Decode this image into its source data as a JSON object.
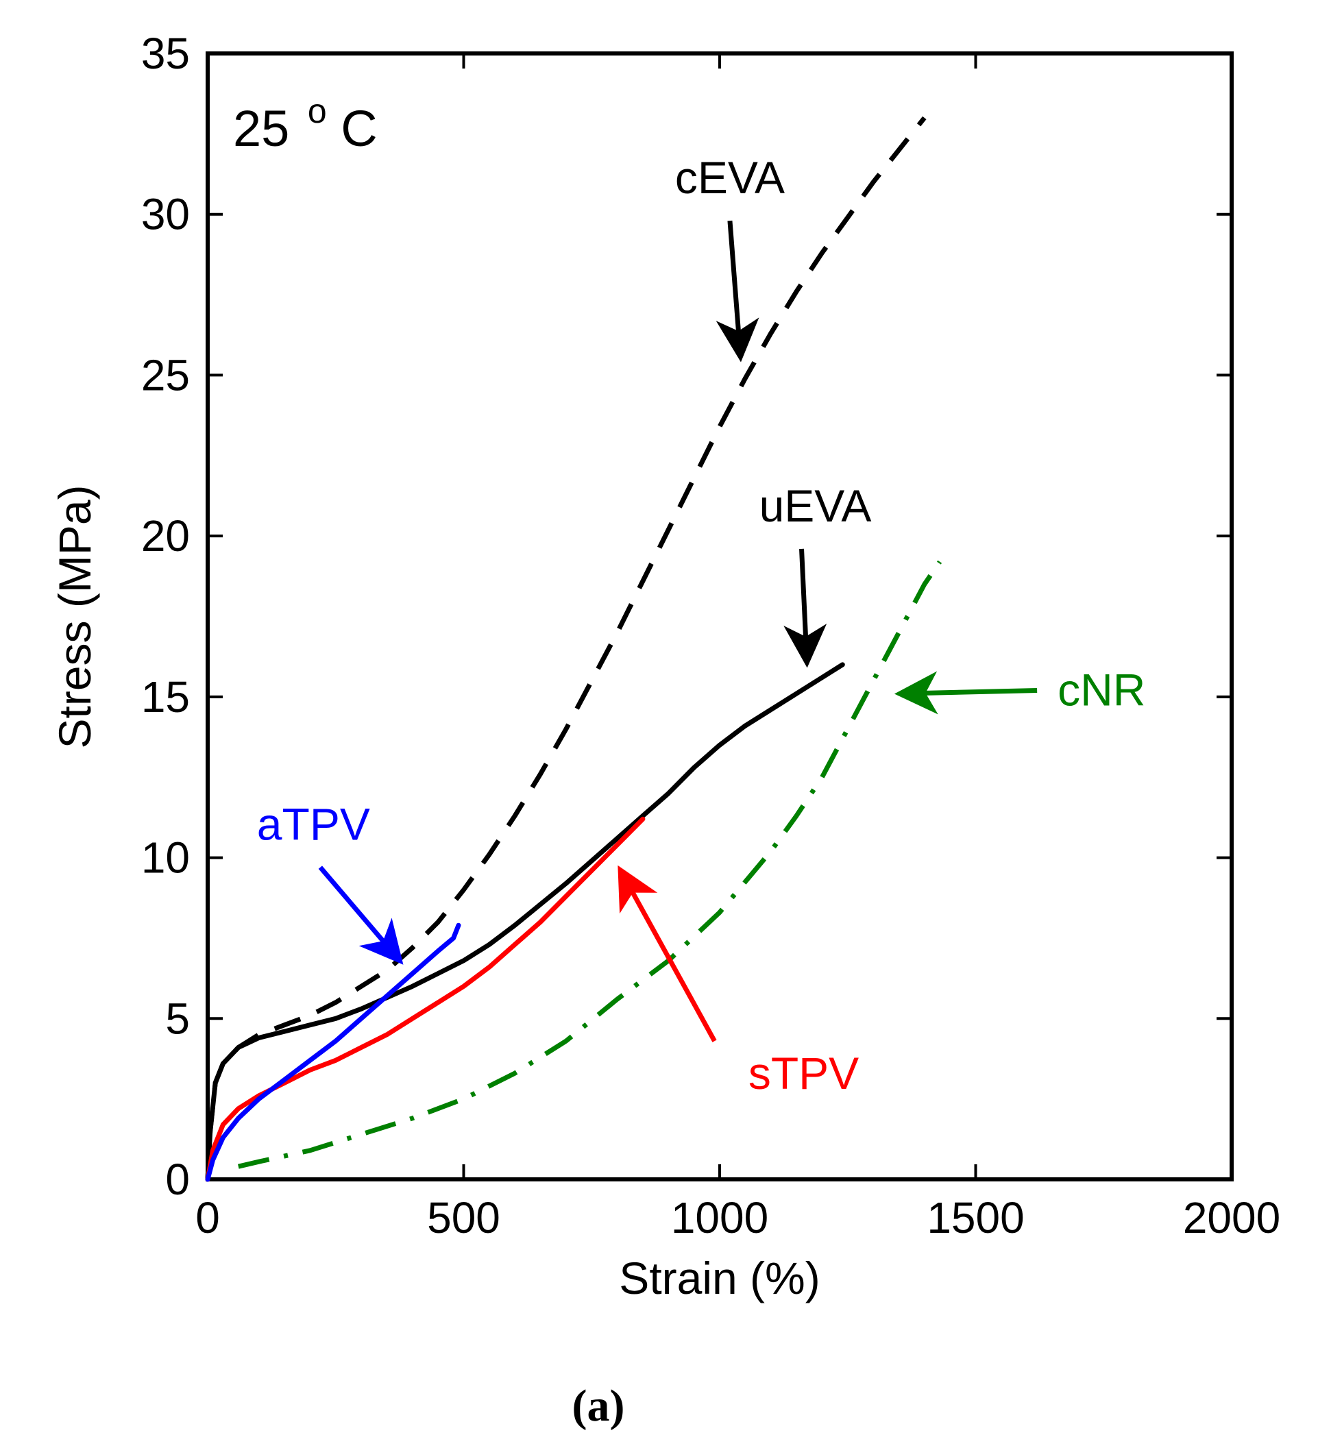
{
  "chart_data": {
    "type": "line",
    "title": "",
    "xlabel": "Strain (%)",
    "ylabel": "Stress (MPa)",
    "xlim": [
      0,
      2000
    ],
    "ylim": [
      0,
      35
    ],
    "xticks": [
      0,
      500,
      1000,
      1500,
      2000
    ],
    "yticks": [
      0,
      5,
      10,
      15,
      20,
      25,
      30,
      35
    ],
    "grid": false,
    "temperature_label": "25 °C",
    "temperature_value": "25",
    "temperature_unit": "C",
    "temperature_degree": "o",
    "caption": "(a)",
    "series": [
      {
        "name": "cEVA",
        "color": "#000000",
        "style": "dashed",
        "x": [
          0,
          5,
          15,
          30,
          60,
          100,
          150,
          200,
          250,
          300,
          350,
          400,
          450,
          500,
          550,
          600,
          650,
          700,
          750,
          800,
          850,
          900,
          950,
          1000,
          1050,
          1100,
          1150,
          1200,
          1250,
          1300,
          1350,
          1400
        ],
        "y": [
          0,
          1.5,
          3.0,
          3.6,
          4.1,
          4.5,
          4.8,
          5.1,
          5.5,
          6.0,
          6.5,
          7.2,
          8.0,
          9.0,
          10.1,
          11.3,
          12.6,
          14.0,
          15.5,
          17.0,
          18.6,
          20.2,
          21.8,
          23.4,
          24.9,
          26.3,
          27.6,
          28.8,
          29.9,
          31.0,
          32.0,
          33.0
        ]
      },
      {
        "name": "uEVA",
        "color": "#000000",
        "style": "solid",
        "x": [
          0,
          5,
          15,
          30,
          60,
          100,
          150,
          200,
          250,
          300,
          400,
          500,
          550,
          600,
          700,
          800,
          850,
          900,
          950,
          1000,
          1050,
          1100,
          1150,
          1200,
          1240
        ],
        "y": [
          0,
          1.5,
          3.0,
          3.6,
          4.1,
          4.4,
          4.6,
          4.8,
          5.0,
          5.3,
          6.0,
          6.8,
          7.3,
          7.9,
          9.2,
          10.6,
          11.3,
          12.0,
          12.8,
          13.5,
          14.1,
          14.6,
          15.1,
          15.6,
          16.0
        ]
      },
      {
        "name": "sTPV",
        "color": "#ff0000",
        "style": "solid",
        "x": [
          0,
          10,
          30,
          60,
          100,
          150,
          200,
          250,
          300,
          350,
          400,
          450,
          500,
          550,
          600,
          650,
          700,
          750,
          800,
          850
        ],
        "y": [
          0,
          0.9,
          1.7,
          2.2,
          2.6,
          3.0,
          3.4,
          3.7,
          4.1,
          4.5,
          5.0,
          5.5,
          6.0,
          6.6,
          7.3,
          8.0,
          8.8,
          9.6,
          10.4,
          11.2
        ]
      },
      {
        "name": "aTPV",
        "color": "#0000ff",
        "style": "solid",
        "x": [
          0,
          10,
          30,
          60,
          100,
          150,
          200,
          250,
          300,
          350,
          400,
          450,
          480,
          490
        ],
        "y": [
          0,
          0.6,
          1.3,
          1.9,
          2.5,
          3.1,
          3.7,
          4.3,
          5.0,
          5.7,
          6.4,
          7.1,
          7.5,
          7.9
        ]
      },
      {
        "name": "cNR",
        "color": "#008000",
        "style": "dashdot",
        "x": [
          60,
          100,
          200,
          300,
          400,
          500,
          600,
          700,
          800,
          900,
          1000,
          1100,
          1150,
          1200,
          1250,
          1300,
          1350,
          1400,
          1430
        ],
        "y": [
          0.4,
          0.55,
          0.9,
          1.4,
          1.9,
          2.5,
          3.3,
          4.3,
          5.6,
          6.8,
          8.3,
          10.2,
          11.3,
          12.5,
          14.0,
          15.5,
          17.0,
          18.5,
          19.2
        ]
      }
    ],
    "annotations": [
      {
        "text": "cEVA",
        "color": "#000000",
        "arrow_from": [
          1020,
          29.8
        ],
        "arrow_to": [
          1040,
          25.7
        ]
      },
      {
        "text": "uEVA",
        "color": "#000000",
        "arrow_from": [
          1160,
          19.6
        ],
        "arrow_to": [
          1170,
          16.2
        ]
      },
      {
        "text": "cNR",
        "color": "#008000",
        "arrow_from": [
          1620,
          15.2
        ],
        "arrow_to": [
          1360,
          15.1
        ]
      },
      {
        "text": "aTPV",
        "color": "#0000ff",
        "arrow_from": [
          220,
          9.7
        ],
        "arrow_to": [
          370,
          6.9
        ]
      },
      {
        "text": "sTPV",
        "color": "#ff0000",
        "arrow_from": [
          990,
          4.3
        ],
        "arrow_to": [
          810,
          9.5
        ]
      }
    ]
  }
}
